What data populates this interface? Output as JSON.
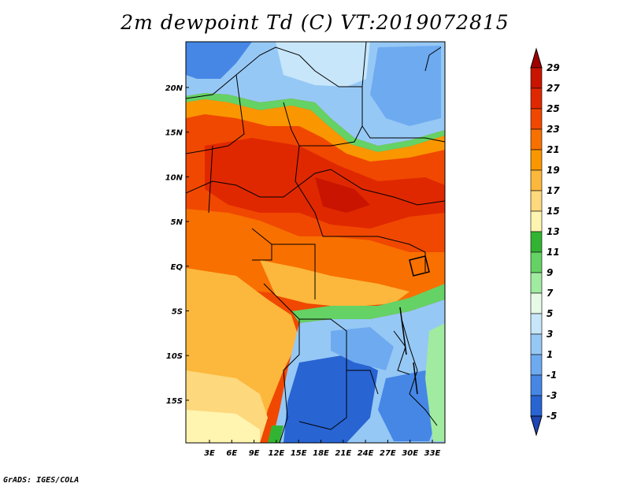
{
  "title": "2m dewpoint Td (C) VT:2019072815",
  "credit": "GrADS: IGES/COLA",
  "map": {
    "lon_labels": [
      "3E",
      "6E",
      "9E",
      "12E",
      "15E",
      "18E",
      "21E",
      "24E",
      "27E",
      "30E",
      "33E"
    ],
    "lat_labels": [
      "20N",
      "15N",
      "10N",
      "5N",
      "EQ",
      "5S",
      "10S",
      "15S"
    ],
    "lon_range": [
      0,
      35
    ],
    "lat_range": [
      -20,
      25
    ]
  },
  "colorbar": {
    "labels": [
      "29",
      "27",
      "25",
      "23",
      "21",
      "19",
      "17",
      "15",
      "13",
      "11",
      "9",
      "7",
      "5",
      "3",
      "1",
      "-1",
      "-3",
      "-5"
    ],
    "colors": [
      "#a00000",
      "#c81400",
      "#e02800",
      "#f04800",
      "#f87000",
      "#fa9600",
      "#fcb83c",
      "#fdd87c",
      "#fff4b0",
      "#32b432",
      "#64d264",
      "#a0eba0",
      "#e6fae6",
      "#c8e6fa",
      "#96c8f5",
      "#6eaaf0",
      "#4687e6",
      "#2864d2",
      "#1e46b4"
    ]
  }
}
